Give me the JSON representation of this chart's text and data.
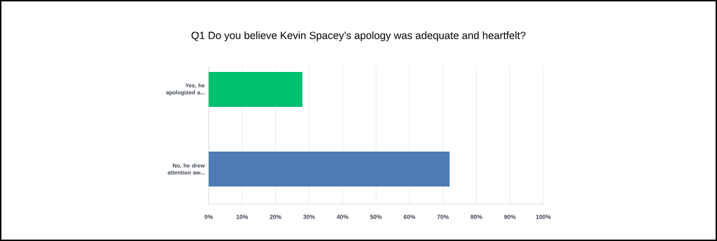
{
  "chart_data": {
    "type": "bar",
    "orientation": "horizontal",
    "title": "Q1 Do you believe Kevin Spacey’s apology was adequate and heartfelt?",
    "categories": [
      "Yes, he apologized a...",
      "No, he drew attention aw..."
    ],
    "values": [
      28,
      72
    ],
    "colors": [
      "#00bf6f",
      "#507cb6"
    ],
    "xlim": [
      0,
      100
    ],
    "xticks": [
      {
        "value": 0,
        "label": "0%"
      },
      {
        "value": 10,
        "label": "10%"
      },
      {
        "value": 20,
        "label": "20%"
      },
      {
        "value": 30,
        "label": "30%"
      },
      {
        "value": 40,
        "label": "40%"
      },
      {
        "value": 50,
        "label": "50%"
      },
      {
        "value": 60,
        "label": "60%"
      },
      {
        "value": 70,
        "label": "70%"
      },
      {
        "value": 80,
        "label": "80%"
      },
      {
        "value": 90,
        "label": "90%"
      },
      {
        "value": 100,
        "label": "100%"
      }
    ],
    "grid": "x"
  }
}
